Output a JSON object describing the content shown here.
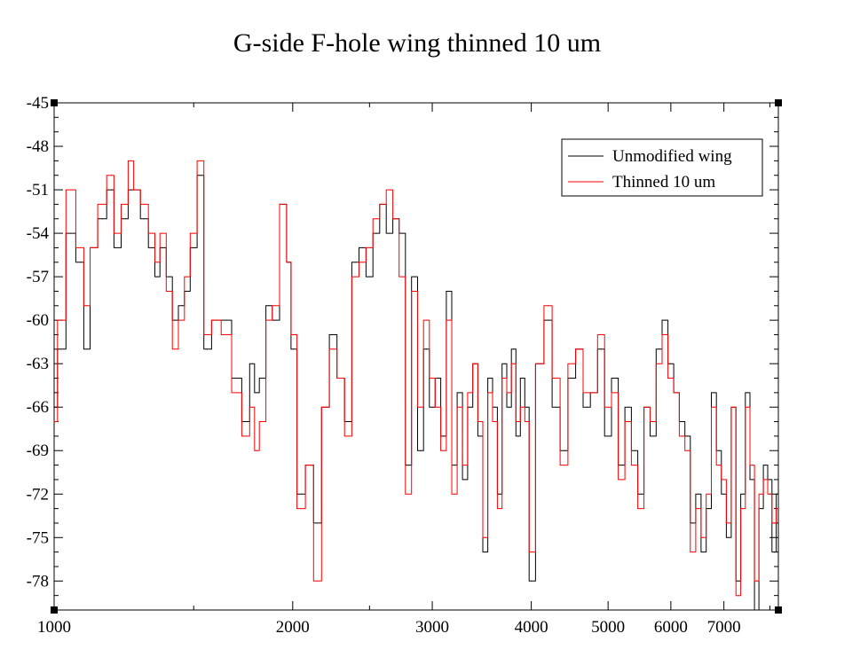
{
  "chart_data": {
    "type": "line",
    "title": "G-side F-hole wing thinned 10 um",
    "xscale": "log",
    "xlim": [
      1000,
      8200
    ],
    "ylim": [
      -80,
      -45
    ],
    "xticks": [
      {
        "value": 1000,
        "label": "1000"
      },
      {
        "value": 2000,
        "label": "2000"
      },
      {
        "value": 3000,
        "label": "3000"
      },
      {
        "value": 4000,
        "label": "4000"
      },
      {
        "value": 5000,
        "label": "5000"
      },
      {
        "value": 6000,
        "label": "6000"
      },
      {
        "value": 7000,
        "label": "7000"
      }
    ],
    "yticks": [
      {
        "value": -45,
        "label": "-45"
      },
      {
        "value": -48,
        "label": "-48"
      },
      {
        "value": -51,
        "label": "-51"
      },
      {
        "value": -54,
        "label": "-54"
      },
      {
        "value": -57,
        "label": "-57"
      },
      {
        "value": -60,
        "label": "-60"
      },
      {
        "value": -63,
        "label": "-63"
      },
      {
        "value": -66,
        "label": "-66"
      },
      {
        "value": -69,
        "label": "-69"
      },
      {
        "value": -72,
        "label": "-72"
      },
      {
        "value": -75,
        "label": "-75"
      },
      {
        "value": -78,
        "label": "-78"
      }
    ],
    "legend_position": "top-right",
    "series": [
      {
        "name": "Unmodified wing",
        "color": "#000000",
        "x": [
          1000,
          1020,
          1050,
          1080,
          1100,
          1120,
          1150,
          1180,
          1200,
          1230,
          1250,
          1270,
          1300,
          1330,
          1350,
          1370,
          1400,
          1420,
          1450,
          1470,
          1500,
          1530,
          1560,
          1600,
          1650,
          1700,
          1750,
          1780,
          1800,
          1830,
          1870,
          1900,
          1950,
          1980,
          2000,
          2050,
          2100,
          2150,
          2200,
          2250,
          2300,
          2350,
          2400,
          2450,
          2500,
          2550,
          2600,
          2650,
          2700,
          2750,
          2800,
          2850,
          2900,
          2950,
          3000,
          3050,
          3100,
          3150,
          3200,
          3250,
          3300,
          3350,
          3400,
          3450,
          3500,
          3550,
          3600,
          3650,
          3700,
          3750,
          3800,
          3850,
          3900,
          3950,
          4000,
          4100,
          4200,
          4300,
          4400,
          4500,
          4600,
          4700,
          4800,
          4900,
          5000,
          5100,
          5200,
          5300,
          5400,
          5500,
          5600,
          5700,
          5800,
          5900,
          6000,
          6100,
          6200,
          6300,
          6400,
          6500,
          6600,
          6700,
          6800,
          6900,
          7000,
          7100,
          7200,
          7300,
          7400,
          7500,
          7600,
          7700,
          7800,
          7900,
          8000,
          8100,
          8200
        ],
        "y": [
          -66,
          -62,
          -54,
          -56,
          -62,
          -55,
          -53,
          -51,
          -55,
          -53,
          -51,
          -51,
          -53,
          -55,
          -57,
          -55,
          -57,
          -60,
          -59,
          -58,
          -55,
          -50,
          -62,
          -60,
          -60,
          -64,
          -67,
          -63,
          -65,
          -64,
          -59,
          -60,
          -52,
          -56,
          -62,
          -72,
          -70,
          -74,
          -66,
          -61,
          -64,
          -67,
          -56,
          -55,
          -57,
          -54,
          -52,
          -54,
          -53,
          -54,
          -70,
          -57,
          -69,
          -62,
          -66,
          -64,
          -68,
          -58,
          -70,
          -65,
          -71,
          -66,
          -63,
          -68,
          -76,
          -64,
          -66,
          -72,
          -63,
          -66,
          -62,
          -68,
          -64,
          -66,
          -78,
          -63,
          -60,
          -66,
          -69,
          -64,
          -62,
          -66,
          -65,
          -62,
          -68,
          -64,
          -70,
          -66,
          -69,
          -72,
          -66,
          -68,
          -62,
          -60,
          -63,
          -65,
          -67,
          -68,
          -74,
          -72,
          -76,
          -73,
          -65,
          -69,
          -72,
          -75,
          -66,
          -78,
          -72,
          -65,
          -71,
          -80,
          -73,
          -70,
          -71,
          -76,
          -72
        ]
      },
      {
        "name": "Thinned 10 um",
        "color": "#ff0000",
        "x": [
          1000,
          1020,
          1050,
          1080,
          1100,
          1120,
          1150,
          1180,
          1200,
          1230,
          1250,
          1270,
          1300,
          1330,
          1350,
          1370,
          1400,
          1420,
          1450,
          1470,
          1500,
          1530,
          1560,
          1600,
          1650,
          1700,
          1750,
          1780,
          1800,
          1830,
          1870,
          1900,
          1950,
          1980,
          2000,
          2050,
          2100,
          2150,
          2200,
          2250,
          2300,
          2350,
          2400,
          2450,
          2500,
          2550,
          2600,
          2650,
          2700,
          2750,
          2800,
          2850,
          2900,
          2950,
          3000,
          3050,
          3100,
          3150,
          3200,
          3250,
          3300,
          3350,
          3400,
          3450,
          3500,
          3550,
          3600,
          3650,
          3700,
          3750,
          3800,
          3850,
          3900,
          3950,
          4000,
          4100,
          4200,
          4300,
          4400,
          4500,
          4600,
          4700,
          4800,
          4900,
          5000,
          5100,
          5200,
          5300,
          5400,
          5500,
          5600,
          5700,
          5800,
          5900,
          6000,
          6100,
          6200,
          6300,
          6400,
          6500,
          6600,
          6700,
          6800,
          6900,
          7000,
          7100,
          7200,
          7300,
          7400,
          7500,
          7600,
          7700,
          7800,
          7900,
          8000,
          8100,
          8200
        ],
        "y": [
          -67,
          -60,
          -51,
          -55,
          -59,
          -55,
          -52,
          -50,
          -54,
          -52,
          -49,
          -51,
          -52,
          -54,
          -56,
          -54,
          -58,
          -62,
          -60,
          -57,
          -54,
          -49,
          -61,
          -60,
          -61,
          -65,
          -68,
          -66,
          -69,
          -67,
          -60,
          -59,
          -52,
          -56,
          -61,
          -73,
          -70,
          -78,
          -66,
          -62,
          -64,
          -68,
          -57,
          -56,
          -55,
          -53,
          -52,
          -51,
          -53,
          -57,
          -72,
          -58,
          -66,
          -60,
          -64,
          -66,
          -69,
          -60,
          -72,
          -66,
          -70,
          -65,
          -63,
          -67,
          -75,
          -65,
          -67,
          -73,
          -64,
          -65,
          -63,
          -67,
          -66,
          -67,
          -76,
          -63,
          -59,
          -64,
          -70,
          -63,
          -62,
          -65,
          -65,
          -61,
          -66,
          -65,
          -71,
          -67,
          -70,
          -73,
          -66,
          -67,
          -63,
          -61,
          -64,
          -65,
          -68,
          -69,
          -76,
          -73,
          -75,
          -72,
          -66,
          -70,
          -71,
          -74,
          -66,
          -79,
          -73,
          -66,
          -70,
          -78,
          -72,
          -71,
          -72,
          -74,
          -73
        ]
      }
    ]
  }
}
